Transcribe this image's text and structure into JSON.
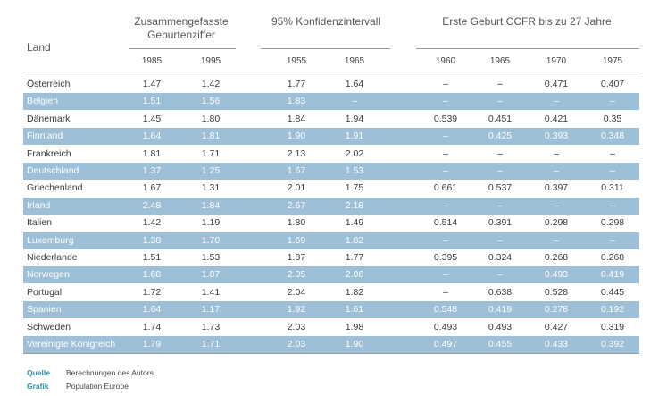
{
  "header": {
    "land": "Land",
    "group1_title": "Zusammengefasste Geburtenziffer",
    "group2_title": "95% Konfidenzintervall",
    "group3_title": "Erste Geburt CCFR bis zu 27 Jahre",
    "cols": [
      "1985",
      "1995",
      "1955",
      "1965",
      "1960",
      "1965",
      "1970",
      "1975"
    ]
  },
  "rows": [
    {
      "land": "Österreich",
      "v": [
        "1.47",
        "1.42",
        "1.77",
        "1.64",
        "–",
        "–",
        "0.471",
        "0.407"
      ],
      "shaded": false
    },
    {
      "land": "Belgien",
      "v": [
        "1.51",
        "1.56",
        "1.83",
        "–",
        "–",
        "–",
        "–",
        "–"
      ],
      "shaded": true
    },
    {
      "land": "Dänemark",
      "v": [
        "1.45",
        "1.80",
        "1.84",
        "1.94",
        "0.539",
        "0.451",
        "0.421",
        "0.35"
      ],
      "shaded": false
    },
    {
      "land": "Finnland",
      "v": [
        "1.64",
        "1.81",
        "1.90",
        "1.91",
        "–",
        "0.425",
        "0.393",
        "0.348"
      ],
      "shaded": true
    },
    {
      "land": "Frankreich",
      "v": [
        "1.81",
        "1.71",
        "2.13",
        "2.02",
        "–",
        "–",
        "–",
        "–"
      ],
      "shaded": false
    },
    {
      "land": "Deutschland",
      "v": [
        "1.37",
        "1.25",
        "1.67",
        "1.53",
        "–",
        "–",
        "–",
        "–"
      ],
      "shaded": true
    },
    {
      "land": "Griechenland",
      "v": [
        "1.67",
        "1.31",
        "2.01",
        "1.75",
        "0.661",
        "0.537",
        "0.397",
        "0.311"
      ],
      "shaded": false
    },
    {
      "land": "Irland",
      "v": [
        "2.48",
        "1.84",
        "2.67",
        "2.18",
        "–",
        "–",
        "–",
        "–"
      ],
      "shaded": true
    },
    {
      "land": "Italien",
      "v": [
        "1.42",
        "1.19",
        "1.80",
        "1.49",
        "0.514",
        "0.391",
        "0.298",
        "0.298"
      ],
      "shaded": false
    },
    {
      "land": "Luxemburg",
      "v": [
        "1.38",
        "1.70",
        "1.69",
        "1.82",
        "–",
        "–",
        "–",
        "–"
      ],
      "shaded": true
    },
    {
      "land": "Niederlande",
      "v": [
        "1.51",
        "1.53",
        "1.87",
        "1.77",
        "0.395",
        "0.324",
        "0.268",
        "0.268"
      ],
      "shaded": false
    },
    {
      "land": "Norwegen",
      "v": [
        "1.68",
        "1.87",
        "2.05",
        "2.06",
        "–",
        "–",
        "0.493",
        "0.419"
      ],
      "shaded": true
    },
    {
      "land": "Portugal",
      "v": [
        "1.72",
        "1.41",
        "2.04",
        "1.82",
        "–",
        "0.638",
        "0.528",
        "0.445"
      ],
      "shaded": false
    },
    {
      "land": "Spanien",
      "v": [
        "1.64",
        "1.17",
        "1.92",
        "1.61",
        "0.548",
        "0.419",
        "0.278",
        "0.192"
      ],
      "shaded": true
    },
    {
      "land": "Schweden",
      "v": [
        "1.74",
        "1.73",
        "2.03",
        "1.98",
        "0.493",
        "0.493",
        "0.427",
        "0.319"
      ],
      "shaded": false
    },
    {
      "land": "Vereinigte Königreich",
      "v": [
        "1.79",
        "1.71",
        "2.03",
        "1.90",
        "0.497",
        "0.455",
        "0.433",
        "0.392"
      ],
      "shaded": true
    }
  ],
  "footer": {
    "quelle_label": "Quelle",
    "quelle_text": "Berechnungen des Autors",
    "grafik_label": "Grafik",
    "grafik_text": "Population Europe"
  },
  "colors": {
    "shade": "#9dbfd8",
    "accent": "#2a8fa8"
  }
}
